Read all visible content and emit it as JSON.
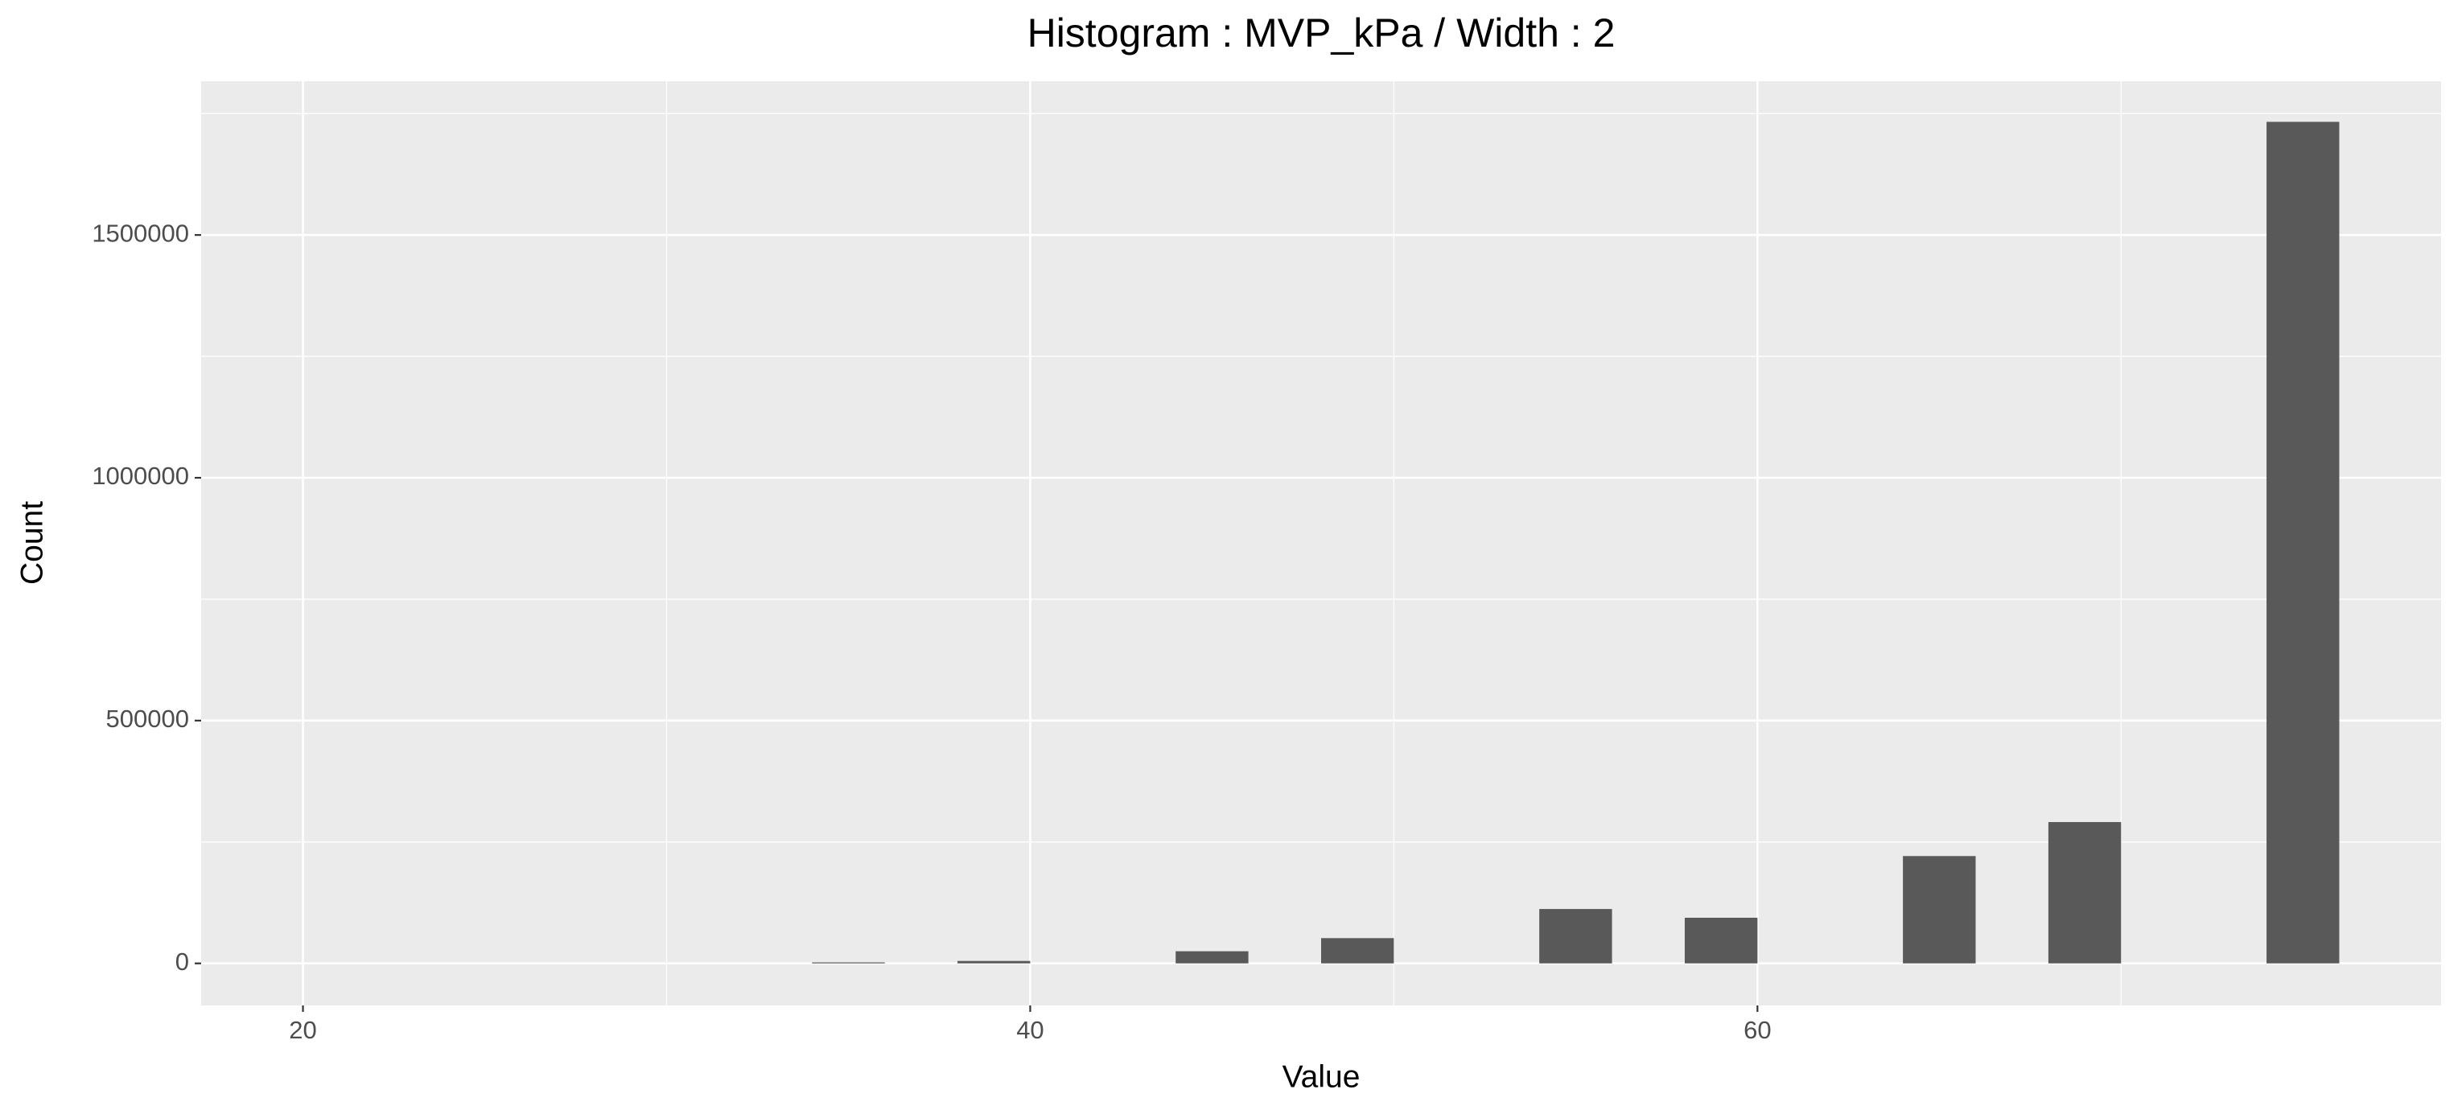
{
  "chart_data": {
    "type": "histogram",
    "title": "Histogram : MVP_kPa / Width : 2",
    "x_label": "Value",
    "y_label": "Count",
    "bins": [
      20,
      22,
      24,
      26,
      28,
      30,
      32,
      34,
      36,
      38,
      40,
      42,
      44,
      46,
      48,
      50,
      52,
      54,
      56,
      58,
      60,
      62,
      64,
      66,
      68,
      70,
      72,
      74,
      76
    ],
    "values": [
      0,
      0,
      0,
      0,
      0,
      0,
      0,
      2000,
      0,
      5000,
      0,
      0,
      25000,
      0,
      52000,
      0,
      0,
      112000,
      0,
      94000,
      0,
      0,
      221000,
      0,
      291000,
      0,
      0,
      1733000
    ],
    "color": "#595959",
    "xlim": [
      17.2,
      78.8
    ],
    "xticks": [
      20,
      40,
      60
    ],
    "x_minor_grid": [
      30,
      50,
      70
    ],
    "ylim": [
      -86600,
      1816600
    ],
    "yticks": [
      0,
      500000,
      1000000,
      1500000
    ],
    "y_minor_grid": [
      250000,
      750000,
      1250000,
      1750000
    ],
    "grid": true
  }
}
